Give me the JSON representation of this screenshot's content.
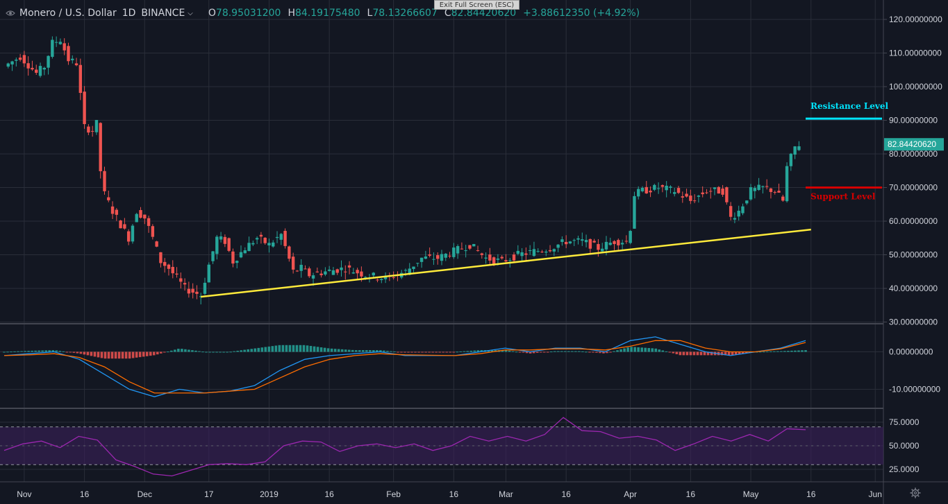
{
  "window": {
    "exit_fullscreen": "Exit Full Screen (ESC)"
  },
  "legend": {
    "symbol": "Monero / U.S. Dollar",
    "timeframe": "1D",
    "exchange": "BINANCE",
    "open_label": "O",
    "open": "78.95031200",
    "high_label": "H",
    "high": "84.19175480",
    "low_label": "L",
    "low": "78.13266607",
    "close_label": "C",
    "close": "82.84420620",
    "change": "+3.88612350 (+4.92%)"
  },
  "icons": {
    "visibility": "eye-icon",
    "dropdown": "chevron-down-icon",
    "settings": "gear-icon"
  },
  "colors": {
    "background": "#131722",
    "grid": "#2a2e39",
    "up": "#26a69a",
    "down": "#ef5350",
    "trendline": "#ffeb3b",
    "resistance": "#00e5ff",
    "support": "#d50000",
    "macd_line": "#2196f3",
    "signal_line": "#ff6d00",
    "rsi_line": "#9c27b0",
    "rsi_band": "#3b1f5a"
  },
  "chart_data": [
    {
      "type": "candlestick",
      "title": "",
      "ylim": [
        30,
        120
      ],
      "y_ticks": [
        "120.00000000",
        "110.00000000",
        "100.00000000",
        "90.00000000",
        "80.00000000",
        "70.00000000",
        "60.00000000",
        "50.00000000",
        "40.00000000",
        "30.00000000"
      ],
      "y_tick_values": [
        120,
        110,
        100,
        90,
        80,
        70,
        60,
        50,
        40,
        30
      ],
      "x_ticks": [
        "Nov",
        "16",
        "Dec",
        "17",
        "2019",
        "16",
        "Feb",
        "16",
        "Mar",
        "16",
        "Apr",
        "16",
        "May",
        "16",
        "Jun"
      ],
      "x_tick_dates": [
        "2018-11-01",
        "2018-11-16",
        "2018-12-01",
        "2018-12-17",
        "2019-01-01",
        "2019-01-16",
        "2019-02-01",
        "2019-02-16",
        "2019-03-01",
        "2019-03-16",
        "2019-04-01",
        "2019-04-16",
        "2019-05-01",
        "2019-05-16",
        "2019-06-01"
      ],
      "date_range": [
        "2018-10-27",
        "2019-06-02"
      ],
      "last_price_label": "82.84420620",
      "last_price": 82.84,
      "close_series": {
        "dates": [
          "2018-10-27",
          "2018-10-31",
          "2018-11-04",
          "2018-11-06",
          "2018-11-08",
          "2018-11-10",
          "2018-11-12",
          "2018-11-14",
          "2018-11-16",
          "2018-11-18",
          "2018-11-19",
          "2018-11-20",
          "2018-11-21",
          "2018-11-23",
          "2018-11-25",
          "2018-11-27",
          "2018-11-29",
          "2018-12-01",
          "2018-12-03",
          "2018-12-05",
          "2018-12-07",
          "2018-12-09",
          "2018-12-11",
          "2018-12-13",
          "2018-12-15",
          "2018-12-17",
          "2018-12-19",
          "2018-12-21",
          "2018-12-23",
          "2018-12-26",
          "2018-12-29",
          "2019-01-01",
          "2019-01-04",
          "2019-01-07",
          "2019-01-09",
          "2019-01-11",
          "2019-01-15",
          "2019-01-20",
          "2019-01-25",
          "2019-01-30",
          "2019-02-04",
          "2019-02-08",
          "2019-02-12",
          "2019-02-16",
          "2019-02-20",
          "2019-02-24",
          "2019-02-28",
          "2019-03-04",
          "2019-03-08",
          "2019-03-12",
          "2019-03-16",
          "2019-03-20",
          "2019-03-24",
          "2019-03-28",
          "2019-03-31",
          "2019-04-01",
          "2019-04-02",
          "2019-04-04",
          "2019-04-08",
          "2019-04-12",
          "2019-04-16",
          "2019-04-20",
          "2019-04-24",
          "2019-04-26",
          "2019-04-28",
          "2019-05-01",
          "2019-05-04",
          "2019-05-07",
          "2019-05-09",
          "2019-05-10",
          "2019-05-11",
          "2019-05-12",
          "2019-05-13"
        ],
        "close": [
          106,
          109,
          104,
          106,
          113,
          114,
          108,
          107,
          88,
          87,
          89,
          75,
          68,
          63,
          59,
          55,
          63,
          61,
          55,
          48,
          46,
          43,
          40,
          39,
          38,
          47,
          55,
          54,
          48,
          52,
          55,
          53,
          56,
          45,
          46,
          44,
          45,
          46,
          44,
          43,
          45,
          49,
          49,
          51,
          53,
          49,
          48,
          50,
          51,
          52,
          54,
          54,
          52,
          54,
          54,
          58,
          68,
          69,
          70,
          69,
          66,
          69,
          69,
          61,
          63,
          69,
          70,
          69,
          66,
          76,
          79,
          82,
          82.84
        ]
      }
    },
    {
      "type": "line",
      "title": "",
      "ylim": [
        -15,
        8
      ],
      "y_ticks": [
        "0.00000000",
        "-10.00000000"
      ],
      "y_tick_values": [
        0,
        -10
      ],
      "series": [
        {
          "values": [
            -1,
            -0.5,
            0,
            -2,
            -6,
            -10,
            -12,
            -10,
            -11,
            -10.5,
            -9,
            -5,
            -2,
            -1,
            -0.5,
            0,
            -1,
            -1,
            -1,
            0,
            1,
            0,
            1,
            1,
            0,
            3,
            4,
            2,
            0,
            -1,
            0,
            1,
            3
          ]
        },
        {
          "values": [
            -1,
            -0.8,
            -0.5,
            -1.5,
            -4,
            -8,
            -11,
            -11,
            -11,
            -10.5,
            -10,
            -7,
            -4,
            -2,
            -1,
            -0.5,
            -0.8,
            -0.9,
            -1,
            -0.5,
            0.5,
            0.5,
            0.8,
            0.8,
            0.5,
            1.5,
            3,
            3,
            1,
            0,
            0,
            0.8,
            2.5
          ]
        }
      ]
    },
    {
      "type": "line",
      "title": "",
      "ylim": [
        10,
        90
      ],
      "y_ticks": [
        "75.0000",
        "50.0000",
        "25.0000"
      ],
      "y_tick_values": [
        75,
        50,
        25
      ],
      "band": [
        30,
        70
      ],
      "series": [
        {
          "values": [
            45,
            52,
            55,
            48,
            60,
            56,
            35,
            28,
            20,
            18,
            24,
            30,
            31,
            30,
            33,
            50,
            55,
            54,
            44,
            50,
            52,
            48,
            52,
            45,
            50,
            60,
            55,
            60,
            55,
            62,
            80,
            66,
            65,
            58,
            60,
            56,
            45,
            52,
            60,
            55,
            62,
            55,
            68,
            67
          ]
        }
      ]
    }
  ],
  "annotations": {
    "resistance_label": "Resistance Level",
    "resistance_value": 90.5,
    "support_label": "Support Level",
    "support_value": 70,
    "trendline": {
      "from": [
        "2018-12-15",
        37.5
      ],
      "to": [
        "2019-05-16",
        57.5
      ]
    }
  }
}
